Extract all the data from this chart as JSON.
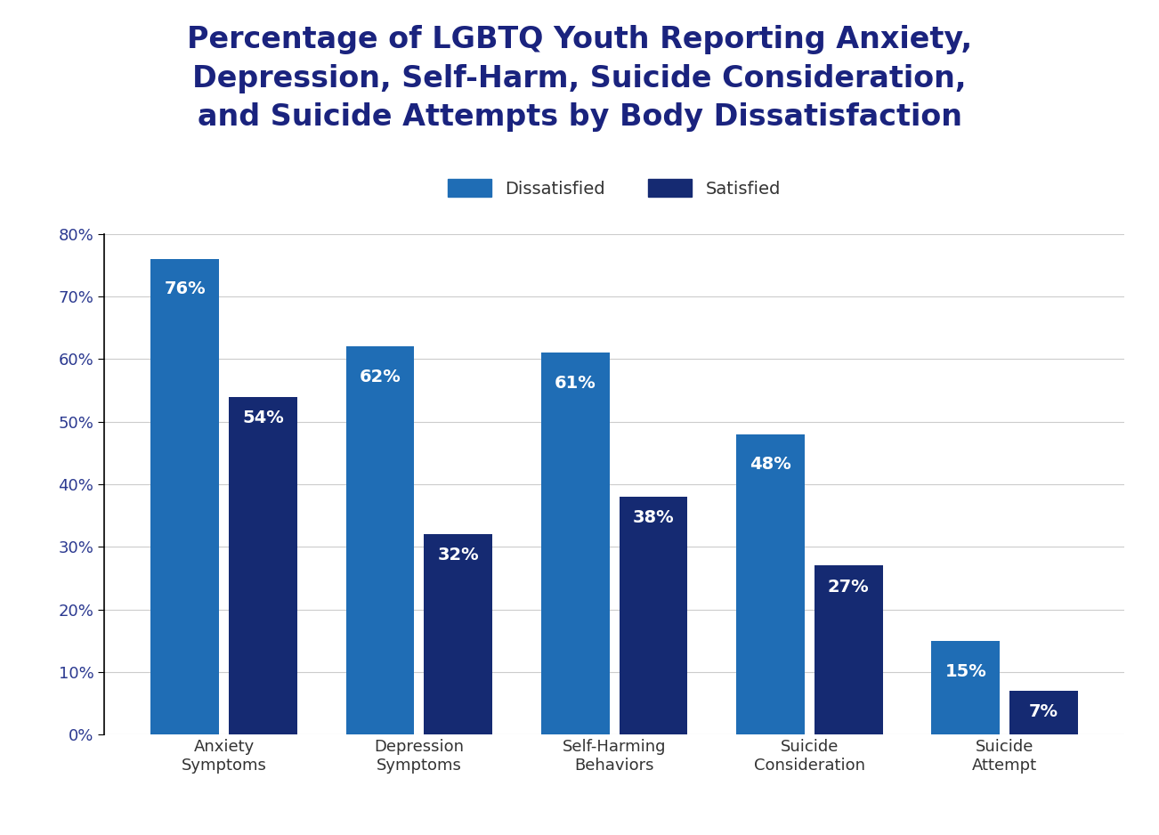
{
  "title": "Percentage of LGBTQ Youth Reporting Anxiety,\nDepression, Self-Harm, Suicide Consideration,\nand Suicide Attempts by Body Dissatisfaction",
  "categories": [
    "Anxiety\nSymptoms",
    "Depression\nSymptoms",
    "Self-Harming\nBehaviors",
    "Suicide\nConsideration",
    "Suicide\nAttempt"
  ],
  "dissatisfied": [
    76,
    62,
    61,
    48,
    15
  ],
  "satisfied": [
    54,
    32,
    38,
    27,
    7
  ],
  "dissatisfied_color": "#1F6DB5",
  "satisfied_color": "#152A72",
  "bar_label_color": "#FFFFFF",
  "title_color": "#1A237E",
  "legend_labels": [
    "Dissatisfied",
    "Satisfied"
  ],
  "ylim": [
    0,
    80
  ],
  "yticks": [
    0,
    10,
    20,
    30,
    40,
    50,
    60,
    70,
    80
  ],
  "background_color": "#FFFFFF",
  "grid_color": "#CCCCCC",
  "title_fontsize": 24,
  "axis_label_fontsize": 13,
  "bar_label_fontsize": 14,
  "legend_fontsize": 14,
  "tick_fontsize": 13,
  "tick_color": "#2B3990"
}
